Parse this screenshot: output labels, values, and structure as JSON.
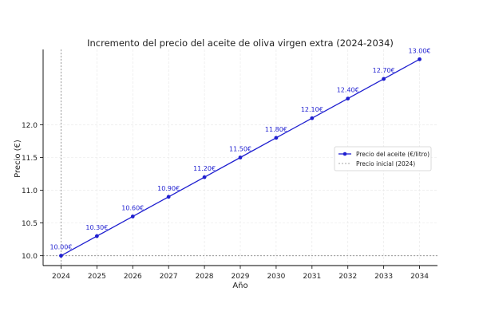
{
  "chart_data": {
    "type": "line",
    "title": "Incremento del precio del aceite de oliva virgen extra (2024-2034)",
    "xlabel": "Año",
    "ylabel": "Precio (€)",
    "x": [
      2024,
      2025,
      2026,
      2027,
      2028,
      2029,
      2030,
      2031,
      2032,
      2033,
      2034
    ],
    "x_tick_labels": [
      "2024",
      "2025",
      "2026",
      "2027",
      "2028",
      "2029",
      "2030",
      "2031",
      "2032",
      "2033",
      "2034"
    ],
    "y_ticks": [
      10.0,
      10.5,
      11.0,
      11.5,
      12.0
    ],
    "y_tick_labels": [
      "10.0",
      "10.5",
      "11.0",
      "11.5",
      "12.0"
    ],
    "xlim": [
      2023.5,
      2034.5
    ],
    "ylim": [
      9.85,
      13.15
    ],
    "grid": true,
    "legend_position": "right",
    "series": [
      {
        "name": "Precio del aceite (€/litro)",
        "color": "#1f1fd0",
        "values": [
          10.0,
          10.3,
          10.6,
          10.9,
          11.2,
          11.5,
          11.8,
          12.1,
          12.4,
          12.7,
          13.0
        ],
        "data_labels": [
          "10.00€",
          "10.30€",
          "10.60€",
          "10.90€",
          "11.20€",
          "11.50€",
          "11.80€",
          "12.10€",
          "12.40€",
          "12.70€",
          "13.00€"
        ]
      }
    ],
    "reference_lines": [
      {
        "name": "Precio inicial (2024)",
        "orientation": "vertical",
        "x": 2024,
        "color": "#888888"
      },
      {
        "orientation": "horizontal",
        "y": 10.0,
        "color": "#888888"
      }
    ]
  }
}
